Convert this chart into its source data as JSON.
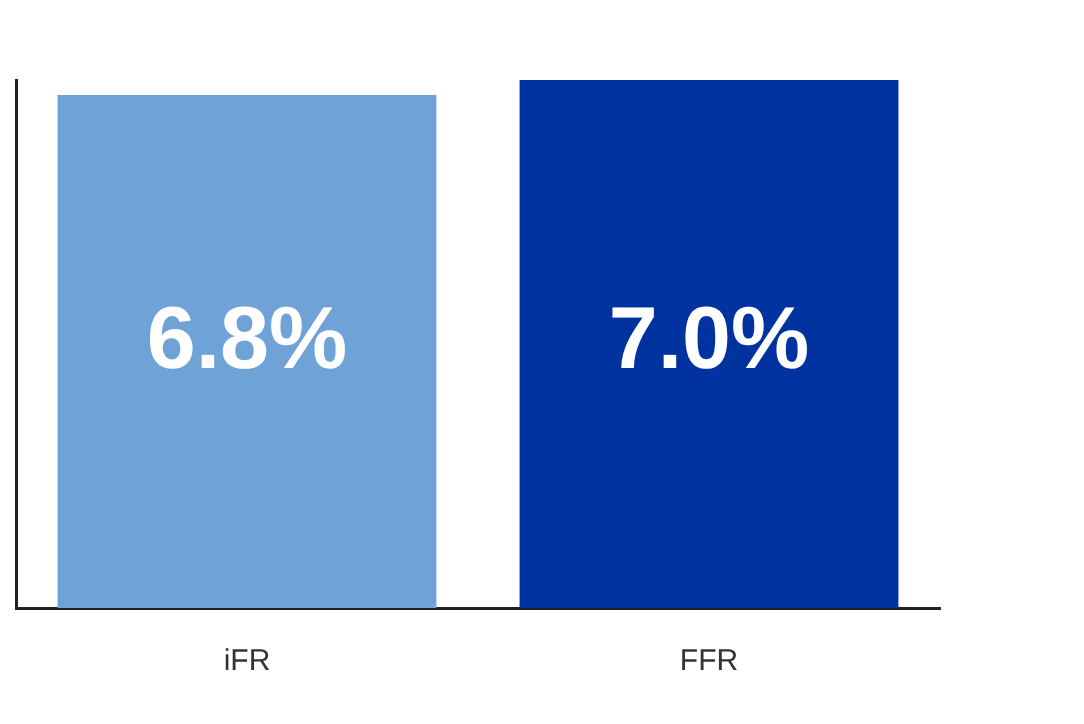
{
  "chart_data": {
    "type": "bar",
    "categories": [
      "iFR",
      "FFR"
    ],
    "values": [
      6.8,
      7.0
    ],
    "colors": [
      "#6fa3d8",
      "#0033a0"
    ],
    "value_labels": [
      "6.8%",
      "7.0%"
    ],
    "tick_labels": "x",
    "grid": false,
    "legend": false
  }
}
